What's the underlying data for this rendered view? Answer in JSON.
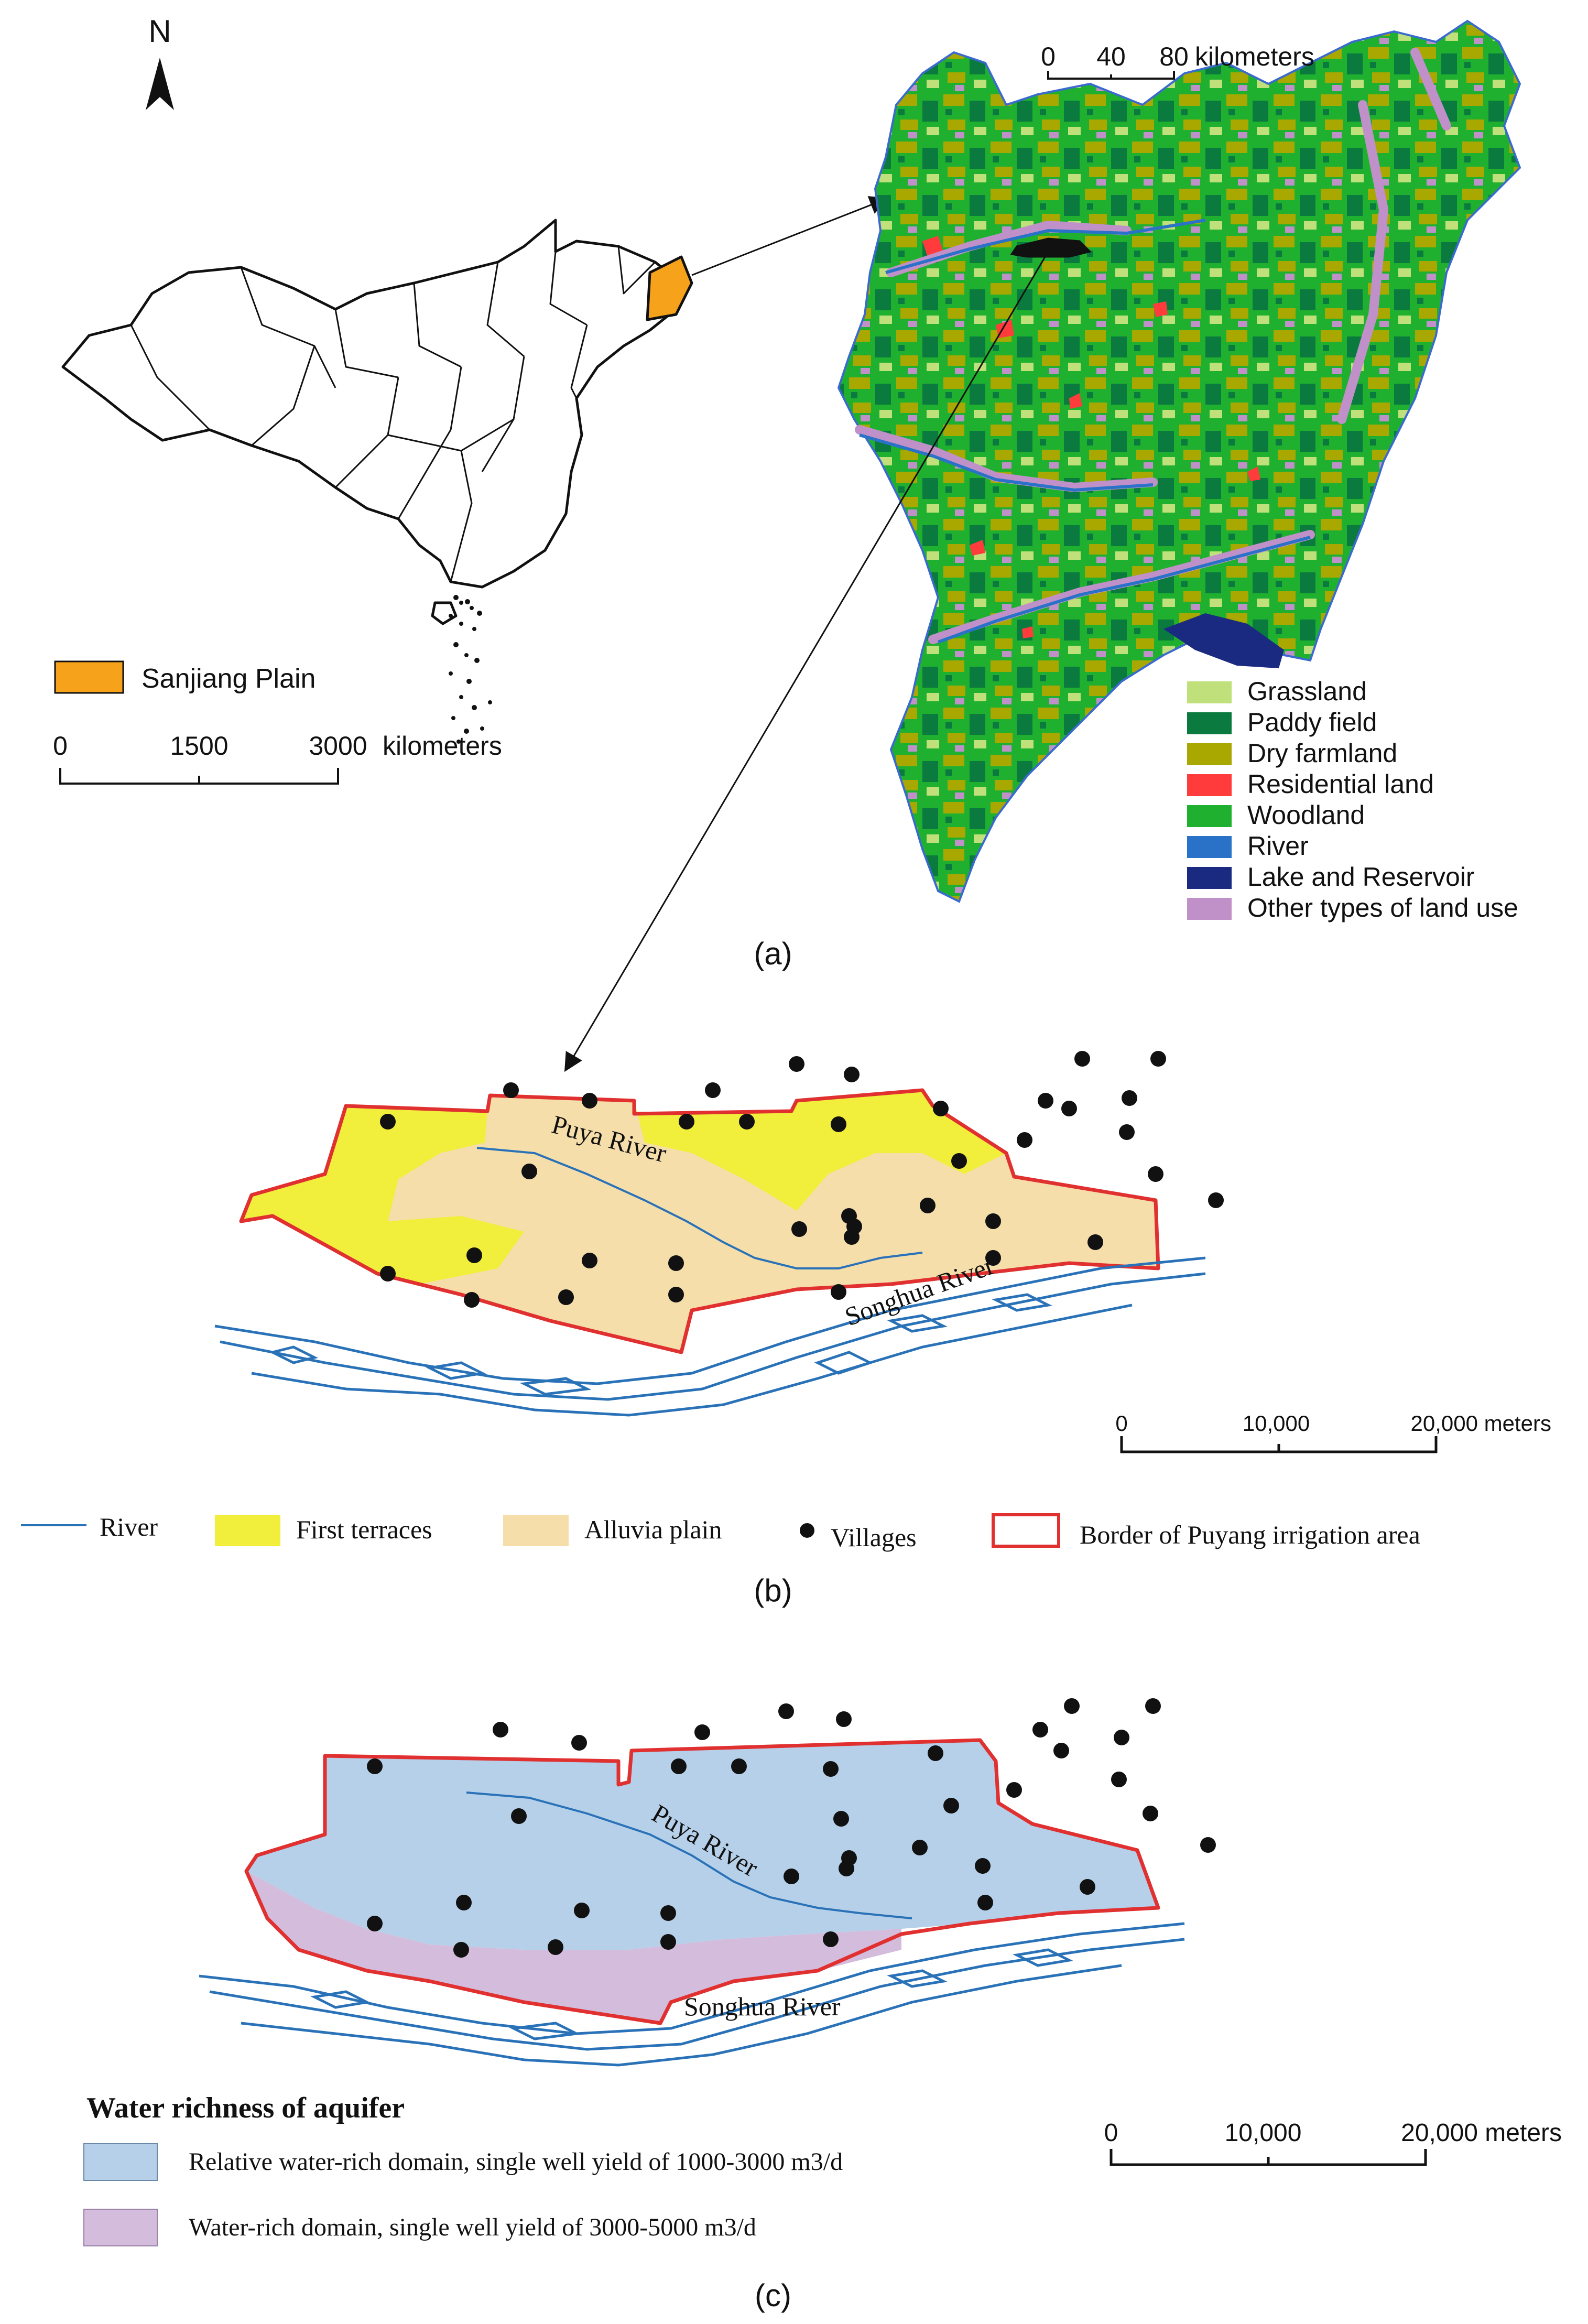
{
  "panel_a": {
    "north_label": "N",
    "china_scale": {
      "t0": "0",
      "t1": "1500",
      "t2": "3000",
      "unit": "kilometers"
    },
    "china_legend_label": "Sanjiang Plain",
    "sanjiang_scale": {
      "t0": "0",
      "t1": "40",
      "t2": "80",
      "unit": "kilometers"
    },
    "landuse_legend": [
      {
        "label": "Grassland",
        "color": "#bfe07a"
      },
      {
        "label": "Paddy field",
        "color": "#0a7a3e"
      },
      {
        "label": "Dry farmland",
        "color": "#a8a800"
      },
      {
        "label": "Residential land",
        "color": "#ff3b3b"
      },
      {
        "label": "Woodland",
        "color": "#20b030"
      },
      {
        "label": "River",
        "color": "#2a72c8"
      },
      {
        "label": "Lake and Reservoir",
        "color": "#1a2a80"
      },
      {
        "label": "Other types of land use",
        "color": "#c090c8"
      }
    ],
    "caption": "(a)"
  },
  "panel_b": {
    "puya_label": "Puya River",
    "songhua_label": "Songhua River",
    "scale": {
      "t0": "0",
      "t1": "10,000",
      "t2": "20,000 meters"
    },
    "legend": {
      "river": "River",
      "first_terraces": "First terraces",
      "alluvia": "Alluvia plain",
      "villages": "Villages",
      "border": "Border of Puyang irrigation area"
    },
    "caption": "(b)"
  },
  "panel_c": {
    "puya_label": "Puya River",
    "songhua_label": "Songhua River",
    "scale": {
      "t0": "0",
      "t1": "10,000",
      "t2": "20,000 meters"
    },
    "legend_title": "Water richness of aquifer",
    "legend": {
      "relative": "Relative water-rich domain, single well yield of 1000-3000 m3/d",
      "rich": "Water-rich domain, single well yield of 3000-5000 m3/d"
    },
    "caption": "(c)"
  },
  "colors": {
    "china_fill": "#ffffff",
    "sanjiang_plain": "#f7a21b",
    "first_terraces": "#f2ee3c",
    "alluvia": "#f5deaa",
    "relative_rich": "#b6d0ea",
    "rich": "#d4bcdc",
    "border": "#e03030",
    "river_line": "#2a72b8"
  }
}
